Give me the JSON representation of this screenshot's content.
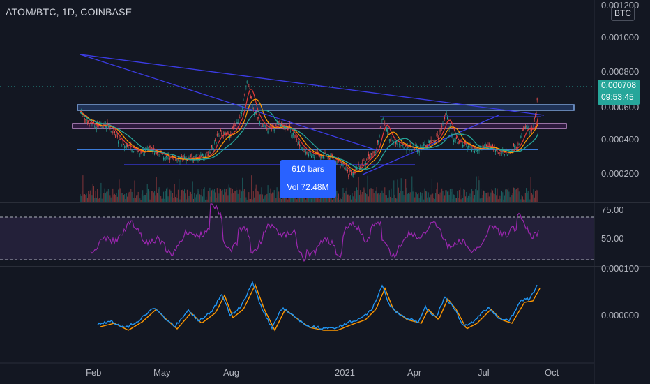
{
  "header": {
    "title": "ATOM/BTC, 1D, COINBASE",
    "currency_badge": "BTC"
  },
  "price_axis": {
    "ticks": [
      "0.001200",
      "0.001000",
      "0.000800",
      "0.000400",
      "0.000200"
    ],
    "hidden_tick": "0.000600"
  },
  "current_price": {
    "value": "0.000708",
    "countdown": "09:53:45"
  },
  "measure_tool": {
    "bars": "610 bars",
    "volume": "Vol 72.48M"
  },
  "rsi_axis": {
    "ticks": [
      "75.00",
      "50.00"
    ]
  },
  "oscillator_axis": {
    "ticks": [
      "0.000100",
      "0.000000"
    ]
  },
  "time_axis": {
    "labels": [
      "Feb",
      "May",
      "Aug",
      "2021",
      "Apr",
      "Jul",
      "Oct"
    ]
  },
  "colors": {
    "background": "#131722",
    "price_badge": "#26a69a",
    "measure_box": "#2962ff",
    "rsi_line": "#9c27b0",
    "macd_line": "#2196f3",
    "signal_line": "#ff9800",
    "trendline": "#3c3ce6"
  }
}
